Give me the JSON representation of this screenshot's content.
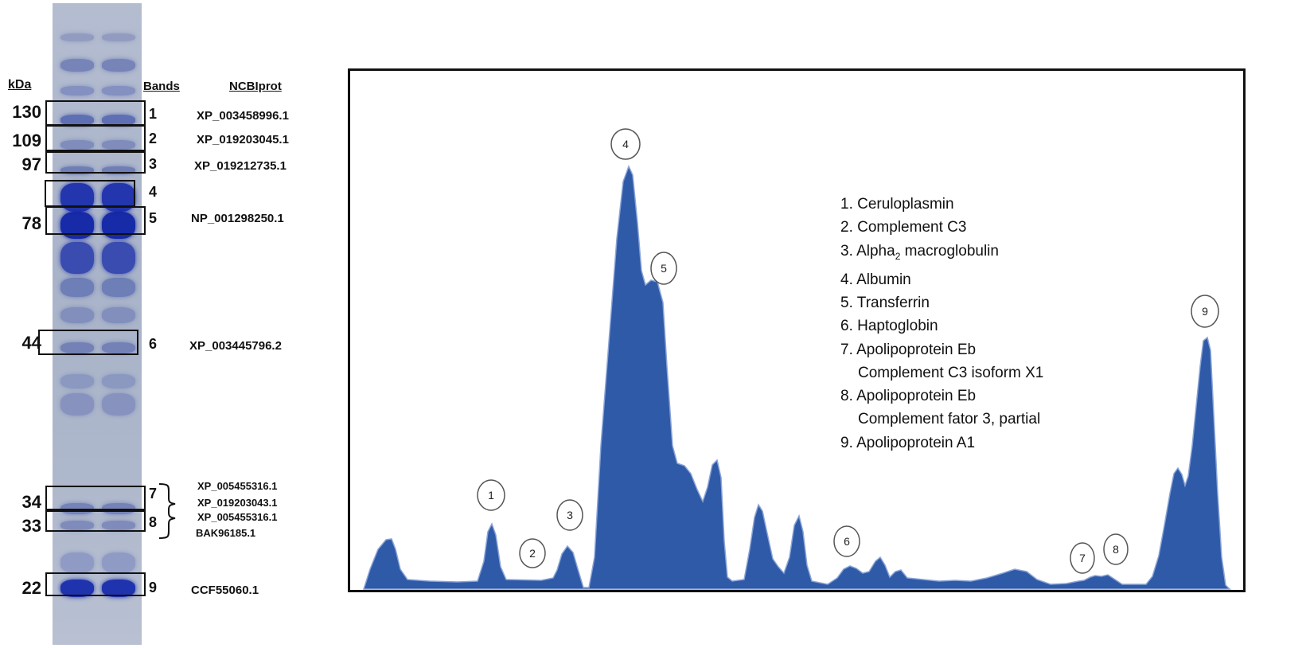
{
  "gel": {
    "kda_title": "kDa",
    "bands_title": "Bands",
    "ncbi_title": "NCBIprot",
    "markers": [
      {
        "kda": "130",
        "band": "1",
        "accession": "XP_003458996.1"
      },
      {
        "kda": "109",
        "band": "2",
        "accession": "XP_019203045.1"
      },
      {
        "kda": "97",
        "band": "3",
        "accession": "XP_019212735.1"
      },
      {
        "kda": "",
        "band": "4",
        "accession": ""
      },
      {
        "kda": "78",
        "band": "5",
        "accession": "NP_001298250.1"
      },
      {
        "kda": "44",
        "band": "6",
        "accession": "XP_003445796.2"
      },
      {
        "kda": "34",
        "band": "7",
        "accession": "XP_005455316.1",
        "accession2": "XP_019203043.1"
      },
      {
        "kda": "33",
        "band": "8",
        "accession": "XP_005455316.1",
        "accession2": "BAK96185.1"
      },
      {
        "kda": "22",
        "band": "9",
        "accession": "CCF55060.1"
      }
    ]
  },
  "profile": {
    "peak_labels": [
      "1",
      "2",
      "3",
      "4",
      "5",
      "6",
      "7",
      "8",
      "9"
    ],
    "fill_color": "#2f5aa8",
    "edge_color": "#8aa4d6"
  },
  "legend": {
    "items": [
      {
        "num": "1.",
        "name": "Ceruloplasmin"
      },
      {
        "num": "2.",
        "name": "Complement C3"
      },
      {
        "num": "3.",
        "name": "Alpha",
        "sub": "2",
        "suffix": " macroglobulin"
      },
      {
        "num": "4.",
        "name": "Albumin"
      },
      {
        "num": "5.",
        "name": "Transferrin"
      },
      {
        "num": "6.",
        "name": "Haptoglobin"
      },
      {
        "num": "7.",
        "name": "Apolipoprotein Eb",
        "line2": "Complement C3 isoform X1"
      },
      {
        "num": "8.",
        "name": "Apolipoprotein Eb",
        "line2": "Complement fator 3, partial"
      },
      {
        "num": "9.",
        "name": "Apolipoprotein A1"
      }
    ]
  }
}
